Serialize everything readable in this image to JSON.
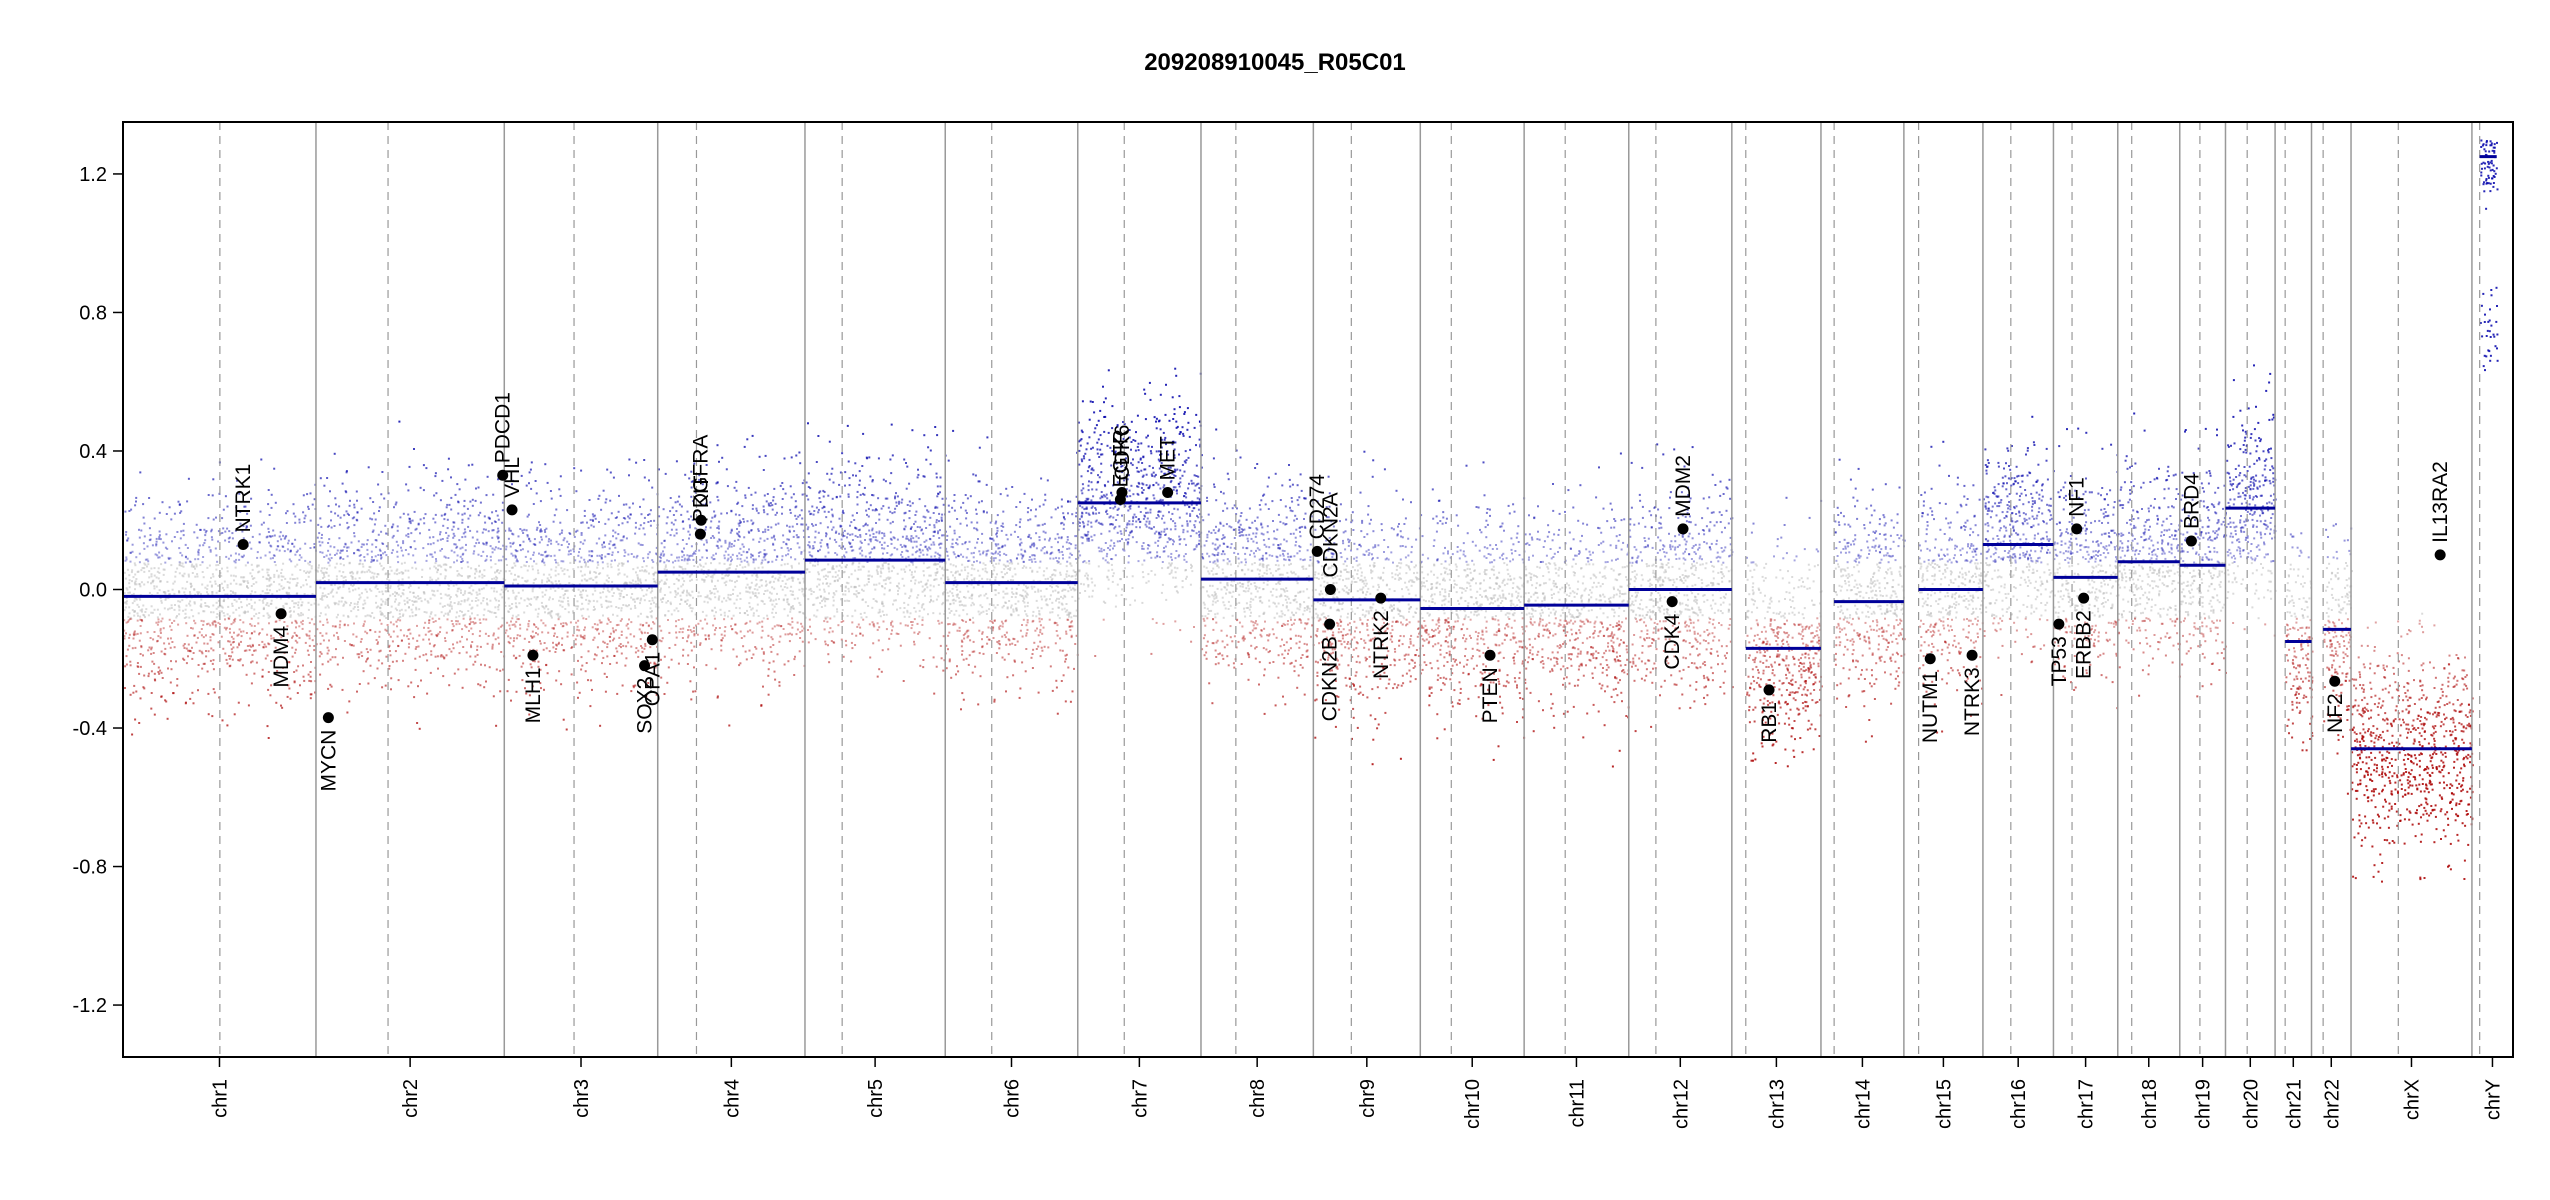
{
  "chart_data": {
    "type": "scatter",
    "title": "209208910045_R05C01",
    "xlabel": "",
    "ylabel": "",
    "ylim": [
      -1.35,
      1.35
    ],
    "yticks": [
      -1.2,
      -0.8,
      -0.4,
      0.0,
      0.4,
      0.8,
      1.2
    ],
    "ytick_labels": [
      "-1.2",
      "-0.8",
      "-0.4",
      "0.0",
      "0.4",
      "0.8",
      "1.2"
    ],
    "x_units": "cumulative genomic position (Mb)",
    "xlim": [
      0,
      3084
    ],
    "colors": {
      "gain": "#0000aa",
      "loss": "#aa0000",
      "neutral": "#bbbbbb",
      "segment": "#000099",
      "boundary": "#999999"
    },
    "chromosomes": [
      {
        "name": "chr1",
        "start": 0,
        "end": 249,
        "centromere": 125
      },
      {
        "name": "chr2",
        "start": 249,
        "end": 492,
        "centromere": 342
      },
      {
        "name": "chr3",
        "start": 492,
        "end": 690,
        "centromere": 582
      },
      {
        "name": "chr4",
        "start": 690,
        "end": 880,
        "centromere": 740
      },
      {
        "name": "chr5",
        "start": 880,
        "end": 1061,
        "centromere": 928
      },
      {
        "name": "chr6",
        "start": 1061,
        "end": 1232,
        "centromere": 1121
      },
      {
        "name": "chr7",
        "start": 1232,
        "end": 1391,
        "centromere": 1292
      },
      {
        "name": "chr8",
        "start": 1391,
        "end": 1536,
        "centromere": 1436
      },
      {
        "name": "chr9",
        "start": 1536,
        "end": 1674,
        "centromere": 1585
      },
      {
        "name": "chr10",
        "start": 1674,
        "end": 1808,
        "centromere": 1714
      },
      {
        "name": "chr11",
        "start": 1808,
        "end": 1943,
        "centromere": 1861
      },
      {
        "name": "chr12",
        "start": 1943,
        "end": 2076,
        "centromere": 1978
      },
      {
        "name": "chr13",
        "start": 2076,
        "end": 2191,
        "centromere": 2094
      },
      {
        "name": "chr14",
        "start": 2191,
        "end": 2298,
        "centromere": 2208
      },
      {
        "name": "chr15",
        "start": 2298,
        "end": 2400,
        "centromere": 2317
      },
      {
        "name": "chr16",
        "start": 2400,
        "end": 2491,
        "centromere": 2436
      },
      {
        "name": "chr17",
        "start": 2491,
        "end": 2574,
        "centromere": 2515
      },
      {
        "name": "chr18",
        "start": 2574,
        "end": 2654,
        "centromere": 2592
      },
      {
        "name": "chr19",
        "start": 2654,
        "end": 2713,
        "centromere": 2680
      },
      {
        "name": "chr20",
        "start": 2713,
        "end": 2777,
        "centromere": 2741
      },
      {
        "name": "chr21",
        "start": 2777,
        "end": 2824,
        "centromere": 2790
      },
      {
        "name": "chr22",
        "start": 2824,
        "end": 2875,
        "centromere": 2839
      },
      {
        "name": "chrX",
        "start": 2875,
        "end": 3031,
        "centromere": 2936
      },
      {
        "name": "chrY",
        "start": 3031,
        "end": 3084,
        "centromere": 3041
      }
    ],
    "segments": [
      {
        "chr": "chr1",
        "start": 0,
        "end": 249,
        "value": -0.02
      },
      {
        "chr": "chr2",
        "start": 249,
        "end": 492,
        "value": 0.02
      },
      {
        "chr": "chr3",
        "start": 492,
        "end": 690,
        "value": 0.01
      },
      {
        "chr": "chr4",
        "start": 690,
        "end": 880,
        "value": 0.05
      },
      {
        "chr": "chr5",
        "start": 880,
        "end": 1061,
        "value": 0.085
      },
      {
        "chr": "chr6",
        "start": 1061,
        "end": 1232,
        "value": 0.02
      },
      {
        "chr": "chr7",
        "start": 1232,
        "end": 1391,
        "value": 0.25
      },
      {
        "chr": "chr8",
        "start": 1391,
        "end": 1536,
        "value": 0.03
      },
      {
        "chr": "chr9",
        "start": 1536,
        "end": 1674,
        "value": -0.03
      },
      {
        "chr": "chr10",
        "start": 1674,
        "end": 1808,
        "value": -0.055
      },
      {
        "chr": "chr11",
        "start": 1808,
        "end": 1943,
        "value": -0.045
      },
      {
        "chr": "chr12",
        "start": 1943,
        "end": 2076,
        "value": 0.0
      },
      {
        "chr": "chr13",
        "start": 2094,
        "end": 2191,
        "value": -0.17
      },
      {
        "chr": "chr14",
        "start": 2208,
        "end": 2298,
        "value": -0.035
      },
      {
        "chr": "chr15",
        "start": 2317,
        "end": 2400,
        "value": 0.0
      },
      {
        "chr": "chr16",
        "start": 2400,
        "end": 2491,
        "value": 0.13
      },
      {
        "chr": "chr17",
        "start": 2491,
        "end": 2574,
        "value": 0.035
      },
      {
        "chr": "chr18",
        "start": 2574,
        "end": 2654,
        "value": 0.08
      },
      {
        "chr": "chr19",
        "start": 2654,
        "end": 2713,
        "value": 0.07
      },
      {
        "chr": "chr20",
        "start": 2713,
        "end": 2777,
        "value": 0.235
      },
      {
        "chr": "chr21",
        "start": 2790,
        "end": 2824,
        "value": -0.15
      },
      {
        "chr": "chr22",
        "start": 2839,
        "end": 2875,
        "value": -0.115
      },
      {
        "chr": "chrX",
        "start": 2875,
        "end": 3031,
        "value": -0.46
      },
      {
        "chr": "chrY",
        "start": 3041,
        "end": 3063,
        "value": 1.25
      }
    ],
    "genes": [
      {
        "name": "NTRK1",
        "pos": 155,
        "value": 0.13
      },
      {
        "name": "MDM4",
        "pos": 204,
        "value": -0.07
      },
      {
        "name": "MYCN",
        "pos": 265,
        "value": -0.37
      },
      {
        "name": "PDCD1",
        "pos": 490,
        "value": 0.33
      },
      {
        "name": "VHL",
        "pos": 502,
        "value": 0.23
      },
      {
        "name": "MLH1",
        "pos": 529,
        "value": -0.19
      },
      {
        "name": "SOX2",
        "pos": 673,
        "value": -0.22
      },
      {
        "name": "OPA1",
        "pos": 683,
        "value": -0.145
      },
      {
        "name": "KIT",
        "pos": 746,
        "value": 0.2
      },
      {
        "name": "PDGFRA",
        "pos": 745,
        "value": 0.16
      },
      {
        "name": "EGFR",
        "pos": 1287,
        "value": 0.26
      },
      {
        "name": "CDK6",
        "pos": 1289,
        "value": 0.28
      },
      {
        "name": "MET",
        "pos": 1348,
        "value": 0.28
      },
      {
        "name": "CD274",
        "pos": 1541,
        "value": 0.11
      },
      {
        "name": "CDKN2A",
        "pos": 1558,
        "value": 0.0
      },
      {
        "name": "CDKN2B",
        "pos": 1557,
        "value": -0.1
      },
      {
        "name": "NTRK2",
        "pos": 1623,
        "value": -0.025
      },
      {
        "name": "PTEN",
        "pos": 1764,
        "value": -0.19
      },
      {
        "name": "CDK4",
        "pos": 1999,
        "value": -0.035
      },
      {
        "name": "MDM2",
        "pos": 2013,
        "value": 0.175
      },
      {
        "name": "RB1",
        "pos": 2124,
        "value": -0.29
      },
      {
        "name": "NUTM1",
        "pos": 2332,
        "value": -0.2
      },
      {
        "name": "NTRK3",
        "pos": 2386,
        "value": -0.19
      },
      {
        "name": "TP53",
        "pos": 2498,
        "value": -0.1
      },
      {
        "name": "NF1",
        "pos": 2521,
        "value": 0.175
      },
      {
        "name": "ERBB2",
        "pos": 2530,
        "value": -0.025
      },
      {
        "name": "BRD4",
        "pos": 2669,
        "value": 0.14
      },
      {
        "name": "NF2",
        "pos": 2854,
        "value": -0.265
      },
      {
        "name": "IL13RA2",
        "pos": 2990,
        "value": 0.1
      }
    ]
  }
}
